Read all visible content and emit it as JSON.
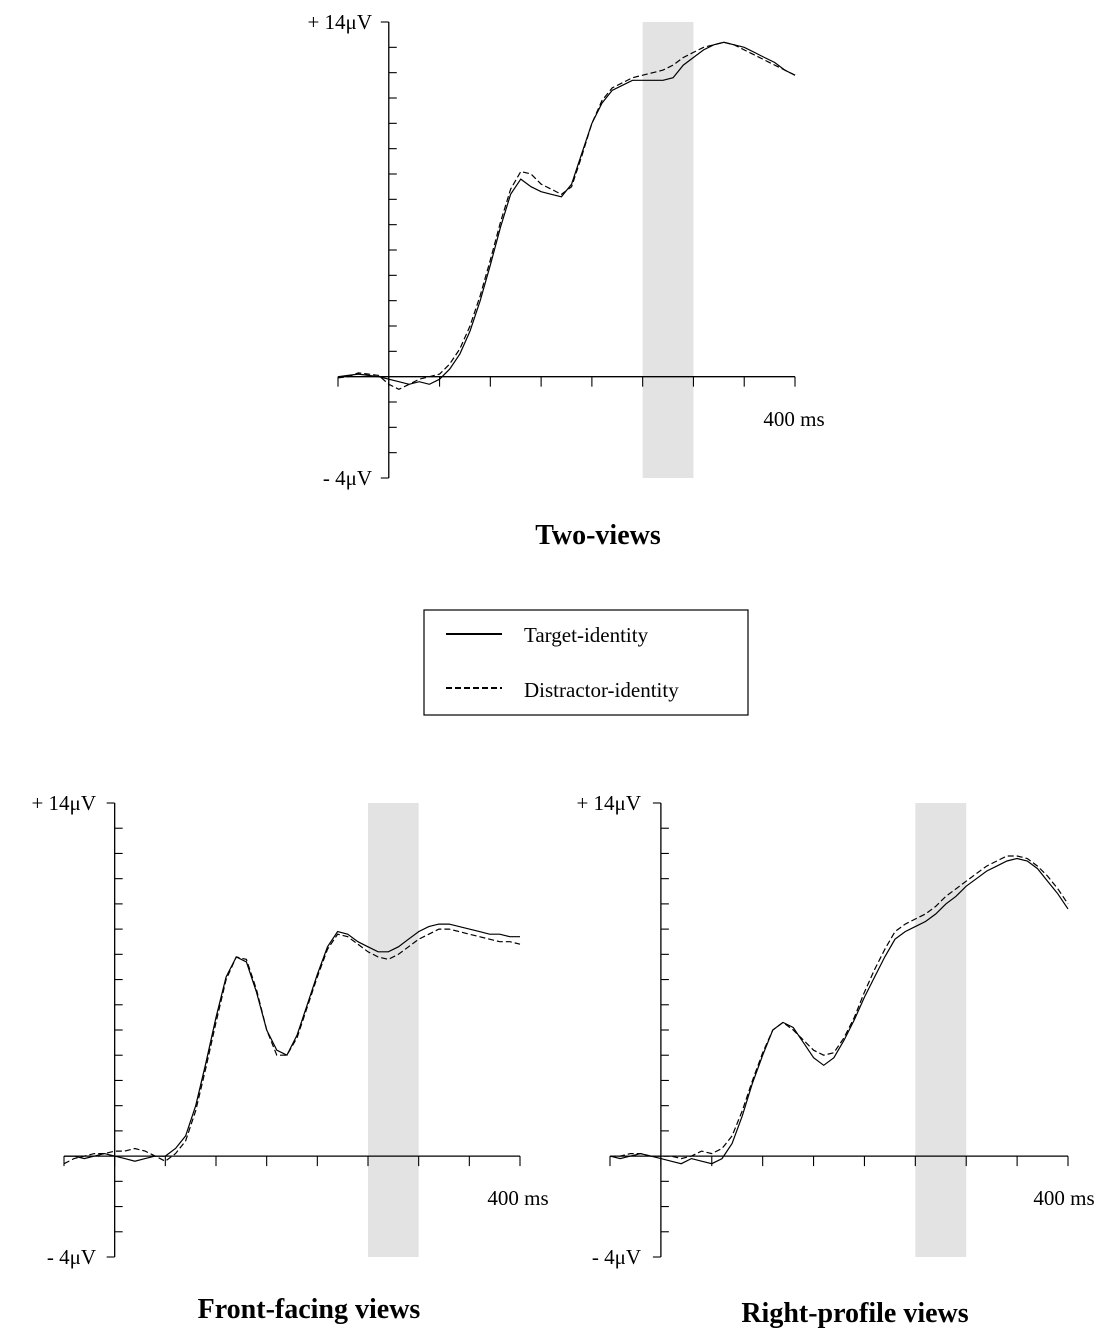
{
  "legend": {
    "placement": "center",
    "entries": [
      "Target-identity",
      "Distractor-identity"
    ]
  },
  "chart_data": [
    {
      "type": "line",
      "title": "Two-views",
      "y_top_label": "+ 14μV",
      "y_bottom_label": "- 4μV",
      "x_end_label": "400 ms",
      "xlim": [
        -50,
        400
      ],
      "ylim": [
        -4,
        14
      ],
      "highlight": [
        250,
        300
      ],
      "series": [
        {
          "name": "Target-identity",
          "style": "solid",
          "x": [
            -50,
            -40,
            -30,
            -20,
            -10,
            0,
            10,
            20,
            30,
            40,
            50,
            60,
            70,
            80,
            90,
            100,
            110,
            120,
            130,
            140,
            150,
            160,
            170,
            180,
            190,
            200,
            210,
            220,
            230,
            240,
            250,
            260,
            270,
            280,
            290,
            300,
            310,
            320,
            330,
            340,
            350,
            360,
            370,
            380,
            390,
            400
          ],
          "y": [
            0,
            0.05,
            0.1,
            0.05,
            0,
            -0.1,
            -0.2,
            -0.3,
            -0.2,
            -0.3,
            -0.1,
            0.3,
            0.9,
            1.8,
            3,
            4.4,
            5.9,
            7.2,
            7.8,
            7.5,
            7.3,
            7.2,
            7.1,
            7.6,
            8.8,
            10,
            10.8,
            11.3,
            11.5,
            11.7,
            11.7,
            11.7,
            11.7,
            11.8,
            12.3,
            12.6,
            12.9,
            13.1,
            13.2,
            13.1,
            13,
            12.8,
            12.6,
            12.4,
            12.1,
            11.9
          ]
        },
        {
          "name": "Distractor-identity",
          "style": "dashed",
          "x": [
            -50,
            -40,
            -30,
            -20,
            -10,
            0,
            10,
            20,
            30,
            40,
            50,
            60,
            70,
            80,
            90,
            100,
            110,
            120,
            130,
            140,
            150,
            160,
            170,
            180,
            190,
            200,
            210,
            220,
            230,
            240,
            250,
            260,
            270,
            280,
            290,
            300,
            310,
            320,
            330,
            340,
            350,
            360,
            370,
            380,
            390,
            400
          ],
          "y": [
            -0.05,
            0,
            0.15,
            0.1,
            0.05,
            -0.3,
            -0.5,
            -0.3,
            -0.1,
            0,
            0.1,
            0.5,
            1.1,
            2,
            3.2,
            4.6,
            6.1,
            7.4,
            8.1,
            8,
            7.6,
            7.4,
            7.2,
            7.5,
            8.7,
            10,
            10.9,
            11.4,
            11.6,
            11.8,
            11.9,
            12,
            12.1,
            12.3,
            12.6,
            12.8,
            13,
            13.1,
            13.2,
            13.1,
            12.9,
            12.7,
            12.5,
            12.3,
            12.1,
            11.9
          ]
        }
      ]
    },
    {
      "type": "line",
      "title": "Front-facing views",
      "y_top_label": "+ 14μV",
      "y_bottom_label": "- 4μV",
      "x_end_label": "400 ms",
      "xlim": [
        -50,
        400
      ],
      "ylim": [
        -4,
        14
      ],
      "highlight": [
        250,
        300
      ],
      "series": [
        {
          "name": "Target-identity",
          "style": "solid",
          "x": [
            -50,
            -40,
            -30,
            -20,
            -10,
            0,
            10,
            20,
            30,
            40,
            50,
            60,
            70,
            80,
            90,
            100,
            110,
            120,
            130,
            140,
            150,
            160,
            170,
            180,
            190,
            200,
            210,
            220,
            230,
            240,
            250,
            260,
            270,
            280,
            290,
            300,
            310,
            320,
            330,
            340,
            350,
            360,
            370,
            380,
            390,
            400
          ],
          "y": [
            0,
            0,
            -0.1,
            0,
            0.1,
            0,
            -0.1,
            -0.2,
            -0.1,
            0,
            0,
            0.3,
            0.8,
            2,
            3.7,
            5.5,
            7.1,
            7.9,
            7.7,
            6.5,
            5,
            4.2,
            4,
            4.8,
            6,
            7.2,
            8.3,
            8.9,
            8.8,
            8.5,
            8.3,
            8.1,
            8.1,
            8.3,
            8.6,
            8.9,
            9.1,
            9.2,
            9.2,
            9.1,
            9,
            8.9,
            8.8,
            8.8,
            8.7,
            8.7
          ]
        },
        {
          "name": "Distractor-identity",
          "style": "dashed",
          "x": [
            -50,
            -40,
            -30,
            -20,
            -10,
            0,
            10,
            20,
            30,
            40,
            50,
            60,
            70,
            80,
            90,
            100,
            110,
            120,
            130,
            140,
            150,
            160,
            170,
            180,
            190,
            200,
            210,
            220,
            230,
            240,
            250,
            260,
            270,
            280,
            290,
            300,
            310,
            320,
            330,
            340,
            350,
            360,
            370,
            380,
            390,
            400
          ],
          "y": [
            -0.3,
            -0.1,
            0,
            0.1,
            0.1,
            0.2,
            0.2,
            0.3,
            0.2,
            0,
            -0.2,
            0.1,
            0.6,
            1.8,
            3.5,
            5.3,
            7,
            7.9,
            7.8,
            6.6,
            5,
            4,
            4,
            4.7,
            5.9,
            7.1,
            8.2,
            8.8,
            8.7,
            8.4,
            8.1,
            7.9,
            7.8,
            8,
            8.3,
            8.6,
            8.8,
            9,
            9,
            8.9,
            8.8,
            8.7,
            8.6,
            8.5,
            8.5,
            8.4
          ]
        }
      ]
    },
    {
      "type": "line",
      "title": "Right-profile views",
      "y_top_label": "+ 14μV",
      "y_bottom_label": "- 4μV",
      "x_end_label": "400 ms",
      "xlim": [
        -50,
        400
      ],
      "ylim": [
        -4,
        14
      ],
      "highlight": [
        250,
        300
      ],
      "series": [
        {
          "name": "Target-identity",
          "style": "solid",
          "x": [
            -50,
            -40,
            -30,
            -20,
            -10,
            0,
            10,
            20,
            30,
            40,
            50,
            60,
            70,
            80,
            90,
            100,
            110,
            120,
            130,
            140,
            150,
            160,
            170,
            180,
            190,
            200,
            210,
            220,
            230,
            240,
            250,
            260,
            270,
            280,
            290,
            300,
            310,
            320,
            330,
            340,
            350,
            360,
            370,
            380,
            390,
            400
          ],
          "y": [
            0,
            -0.1,
            0,
            0.1,
            0,
            -0.1,
            -0.2,
            -0.3,
            -0.1,
            -0.2,
            -0.3,
            -0.1,
            0.5,
            1.6,
            2.9,
            4,
            5,
            5.3,
            5.1,
            4.5,
            3.9,
            3.6,
            3.9,
            4.6,
            5.4,
            6.3,
            7.1,
            7.9,
            8.6,
            8.9,
            9.1,
            9.3,
            9.6,
            10,
            10.3,
            10.7,
            11,
            11.3,
            11.5,
            11.7,
            11.8,
            11.7,
            11.4,
            10.9,
            10.4,
            9.8
          ]
        },
        {
          "name": "Distractor-identity",
          "style": "dashed",
          "x": [
            -50,
            -40,
            -30,
            -20,
            -10,
            0,
            10,
            20,
            30,
            40,
            50,
            60,
            70,
            80,
            90,
            100,
            110,
            120,
            130,
            140,
            150,
            160,
            170,
            180,
            190,
            200,
            210,
            220,
            230,
            240,
            250,
            260,
            270,
            280,
            290,
            300,
            310,
            320,
            330,
            340,
            350,
            360,
            370,
            380,
            390,
            400
          ],
          "y": [
            0,
            0,
            0.1,
            0.1,
            0,
            0,
            0,
            -0.1,
            0,
            0.2,
            0.1,
            0.3,
            0.8,
            1.8,
            3,
            4.1,
            5,
            5.3,
            5,
            4.6,
            4.2,
            4,
            4.1,
            4.7,
            5.5,
            6.5,
            7.4,
            8.2,
            8.9,
            9.2,
            9.4,
            9.6,
            9.9,
            10.3,
            10.6,
            10.9,
            11.2,
            11.5,
            11.7,
            11.9,
            11.9,
            11.8,
            11.5,
            11.1,
            10.6,
            10
          ]
        }
      ]
    }
  ]
}
